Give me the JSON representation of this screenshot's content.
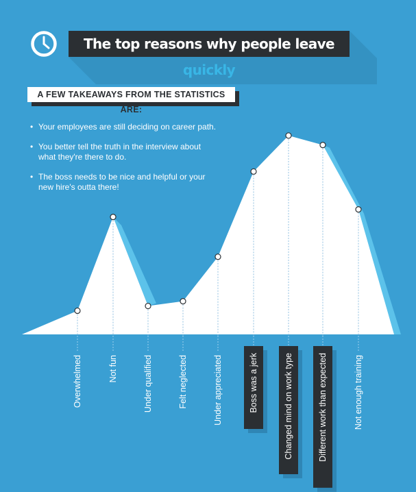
{
  "title": {
    "text_main": "The top reasons why people leave ",
    "text_highlight": "quickly"
  },
  "subtitle": "A FEW TAKEAWAYS FROM THE STATISTICS ARE:",
  "bullets": [
    "Your employees are still deciding on career path.",
    "You better tell the truth in the interview about what they're there to do.",
    "The boss needs to be nice and helpful or your new hire's outta there!"
  ],
  "icons": {
    "title_icon": "clock-icon",
    "bullet_icon": "bullet-dot"
  },
  "colors": {
    "background": "#3a9fd3",
    "area": "#ffffff",
    "area_shadow": "#5cc2ea",
    "dark": "#2b2f33",
    "highlight": "#39b6e6"
  },
  "chart_data": {
    "type": "area",
    "title": "",
    "xlabel": "",
    "ylabel": "",
    "categories": [
      "Overwhelmed",
      "Not fun",
      "Under qualified",
      "Felt neglected",
      "Under appreciated",
      "Boss was a jerk",
      "Changed mind on work type",
      "Different work than expected",
      "Not enough training"
    ],
    "values": [
      12.5,
      62,
      15,
      17.5,
      41,
      86,
      105,
      100,
      66
    ],
    "highlighted_categories": [
      "Boss was a jerk",
      "Changed mind on work type",
      "Different work than expected"
    ],
    "ylim": [
      0,
      110
    ],
    "y_axis_shown": false,
    "grid": false,
    "legend": "none"
  }
}
